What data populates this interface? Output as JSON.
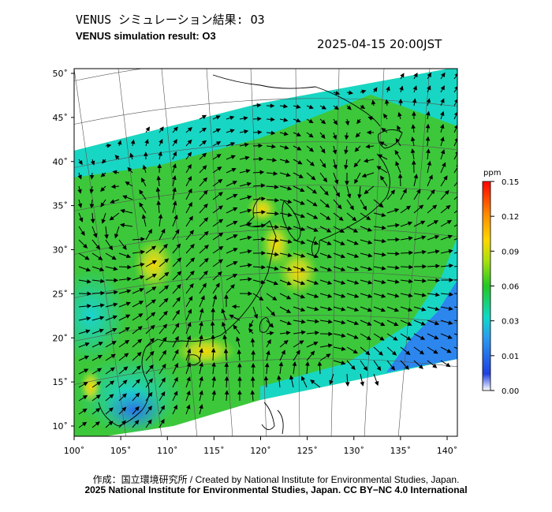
{
  "header": {
    "title_jp": "VENUS シミュレーション結果: O3",
    "title_en": "VENUS simulation result: O3",
    "timestamp": "2025-04-15 20:00JST"
  },
  "map": {
    "lon_range": [
      100,
      142
    ],
    "lat_range": [
      9,
      51
    ],
    "lon_ticks": [
      "100˚",
      "105˚",
      "110˚",
      "115˚",
      "120˚",
      "125˚",
      "130˚",
      "135˚",
      "140˚"
    ],
    "lat_ticks": [
      "10˚",
      "15˚",
      "20˚",
      "25˚",
      "30˚",
      "35˚",
      "40˚",
      "45˚",
      "50˚"
    ],
    "field": "O3 concentration with wind vectors",
    "hotspots": [
      {
        "lon": 107.5,
        "lat": 27.5,
        "ppm": 0.085
      },
      {
        "lon": 124.5,
        "lat": 27.0,
        "ppm": 0.095
      },
      {
        "lon": 120.5,
        "lat": 34.5,
        "ppm": 0.09
      },
      {
        "lon": 113.5,
        "lat": 18.5,
        "ppm": 0.09
      },
      {
        "lon": 101.5,
        "lat": 14.5,
        "ppm": 0.085
      }
    ]
  },
  "colorbar": {
    "unit": "ppm",
    "ticks": [
      "0.15",
      "0.12",
      "0.09",
      "0.06",
      "0.03",
      "0.01",
      "0.00"
    ],
    "colors": [
      "#ff0000",
      "#ff8c00",
      "#ffd700",
      "#a8e010",
      "#22c822",
      "#10d8c8",
      "#2a8ef0",
      "#1c38d8",
      "#ffffff"
    ]
  },
  "footer": {
    "credit": "作成：国立環境研究所 / Created by National Institute for Environmental Studies, Japan.",
    "license": "2025 National Institute for Environmental Studies, Japan. CC BY−NC 4.0 International"
  }
}
